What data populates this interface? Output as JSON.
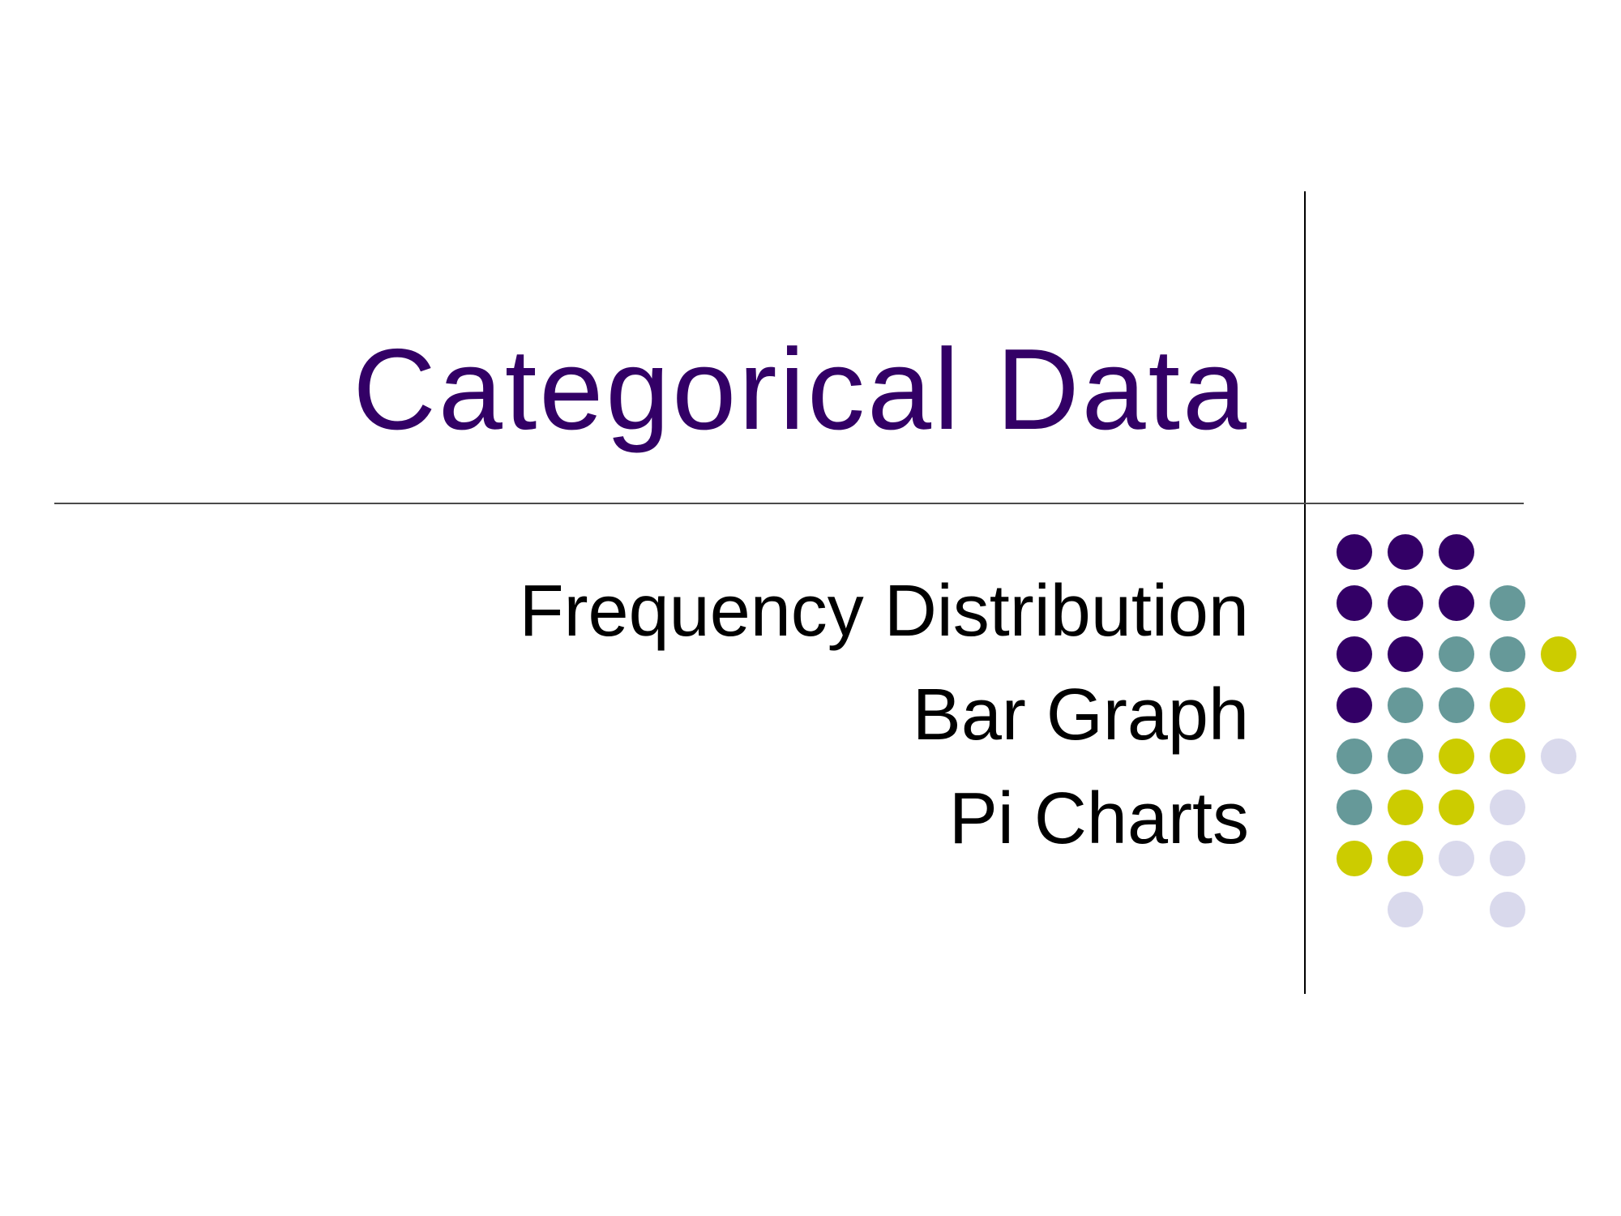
{
  "slide": {
    "title": "Categorical Data",
    "subtitle_lines": [
      "Frequency Distribution",
      "Bar Graph",
      "Pi Charts"
    ]
  },
  "colors": {
    "title": "#330066",
    "text": "#000000",
    "purple": "#330066",
    "teal": "#669999",
    "yellow": "#CCCC00",
    "lavender": "#D9D9EC"
  },
  "decoration": {
    "dot_rows": [
      [
        "purple",
        "purple",
        "purple",
        null,
        null
      ],
      [
        "purple",
        "purple",
        "purple",
        "teal",
        null
      ],
      [
        "purple",
        "purple",
        "teal",
        "teal",
        "yellow"
      ],
      [
        "purple",
        "teal",
        "teal",
        "yellow",
        null
      ],
      [
        "teal",
        "teal",
        "yellow",
        "yellow",
        "lavender"
      ],
      [
        "teal",
        "yellow",
        "yellow",
        "lavender",
        null
      ],
      [
        "yellow",
        "yellow",
        "lavender",
        "lavender",
        null
      ],
      [
        null,
        "lavender",
        null,
        "lavender",
        null
      ]
    ]
  }
}
